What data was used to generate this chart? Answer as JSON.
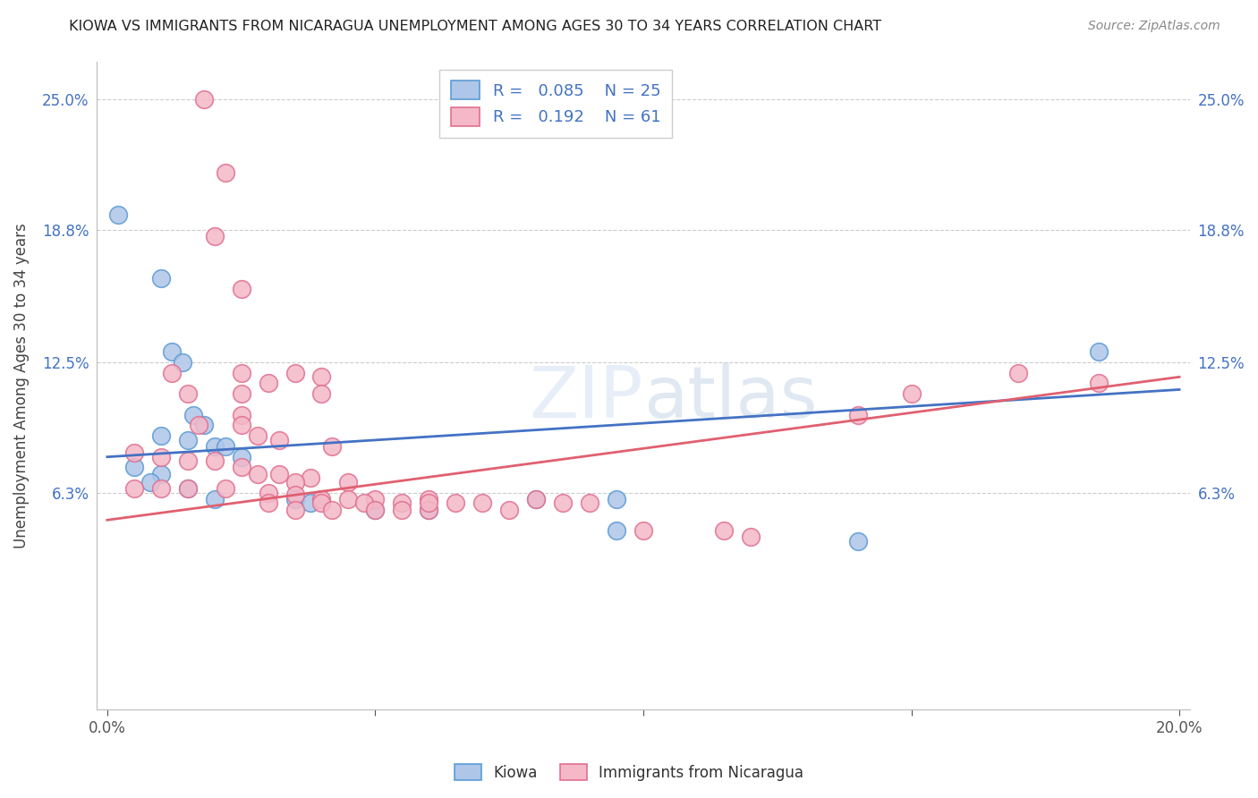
{
  "title": "KIOWA VS IMMIGRANTS FROM NICARAGUA UNEMPLOYMENT AMONG AGES 30 TO 34 YEARS CORRELATION CHART",
  "source": "Source: ZipAtlas.com",
  "ylabel": "Unemployment Among Ages 30 to 34 years",
  "xlim": [
    -0.002,
    0.202
  ],
  "ylim": [
    -0.04,
    0.268
  ],
  "xticks": [
    0.0,
    0.05,
    0.1,
    0.15,
    0.2
  ],
  "xtick_labels": [
    "0.0%",
    "",
    "",
    "",
    "20.0%"
  ],
  "ytick_positions": [
    0.063,
    0.125,
    0.188,
    0.25
  ],
  "ytick_labels": [
    "6.3%",
    "12.5%",
    "18.8%",
    "25.0%"
  ],
  "watermark_text": "ZIPatlas",
  "kiowa_color": "#aec6e8",
  "nicaragua_color": "#f4b8c8",
  "kiowa_edge_color": "#5b9bd5",
  "nicaragua_edge_color": "#e07090",
  "kiowa_line_color": "#4472c4",
  "nicaragua_line_color": "#e06070",
  "kiowa_points": [
    [
      0.002,
      0.195
    ],
    [
      0.01,
      0.165
    ],
    [
      0.012,
      0.13
    ],
    [
      0.014,
      0.125
    ],
    [
      0.016,
      0.1
    ],
    [
      0.018,
      0.095
    ],
    [
      0.01,
      0.09
    ],
    [
      0.015,
      0.088
    ],
    [
      0.02,
      0.085
    ],
    [
      0.022,
      0.085
    ],
    [
      0.025,
      0.08
    ],
    [
      0.005,
      0.075
    ],
    [
      0.01,
      0.072
    ],
    [
      0.008,
      0.068
    ],
    [
      0.015,
      0.065
    ],
    [
      0.02,
      0.06
    ],
    [
      0.035,
      0.06
    ],
    [
      0.038,
      0.058
    ],
    [
      0.05,
      0.055
    ],
    [
      0.06,
      0.055
    ],
    [
      0.08,
      0.06
    ],
    [
      0.095,
      0.06
    ],
    [
      0.095,
      0.045
    ],
    [
      0.14,
      0.04
    ],
    [
      0.185,
      0.13
    ]
  ],
  "nicaragua_points": [
    [
      0.018,
      0.25
    ],
    [
      0.022,
      0.215
    ],
    [
      0.02,
      0.185
    ],
    [
      0.025,
      0.16
    ],
    [
      0.025,
      0.12
    ],
    [
      0.03,
      0.115
    ],
    [
      0.035,
      0.12
    ],
    [
      0.04,
      0.118
    ],
    [
      0.012,
      0.12
    ],
    [
      0.015,
      0.11
    ],
    [
      0.025,
      0.11
    ],
    [
      0.04,
      0.11
    ],
    [
      0.025,
      0.1
    ],
    [
      0.025,
      0.095
    ],
    [
      0.017,
      0.095
    ],
    [
      0.028,
      0.09
    ],
    [
      0.032,
      0.088
    ],
    [
      0.042,
      0.085
    ],
    [
      0.005,
      0.082
    ],
    [
      0.01,
      0.08
    ],
    [
      0.015,
      0.078
    ],
    [
      0.02,
      0.078
    ],
    [
      0.025,
      0.075
    ],
    [
      0.028,
      0.072
    ],
    [
      0.032,
      0.072
    ],
    [
      0.038,
      0.07
    ],
    [
      0.045,
      0.068
    ],
    [
      0.035,
      0.068
    ],
    [
      0.005,
      0.065
    ],
    [
      0.01,
      0.065
    ],
    [
      0.015,
      0.065
    ],
    [
      0.022,
      0.065
    ],
    [
      0.03,
      0.063
    ],
    [
      0.035,
      0.062
    ],
    [
      0.04,
      0.06
    ],
    [
      0.045,
      0.06
    ],
    [
      0.05,
      0.06
    ],
    [
      0.055,
      0.058
    ],
    [
      0.06,
      0.06
    ],
    [
      0.065,
      0.058
    ],
    [
      0.06,
      0.055
    ],
    [
      0.07,
      0.058
    ],
    [
      0.075,
      0.055
    ],
    [
      0.03,
      0.058
    ],
    [
      0.04,
      0.058
    ],
    [
      0.048,
      0.058
    ],
    [
      0.035,
      0.055
    ],
    [
      0.042,
      0.055
    ],
    [
      0.05,
      0.055
    ],
    [
      0.055,
      0.055
    ],
    [
      0.06,
      0.058
    ],
    [
      0.08,
      0.06
    ],
    [
      0.085,
      0.058
    ],
    [
      0.09,
      0.058
    ],
    [
      0.1,
      0.045
    ],
    [
      0.115,
      0.045
    ],
    [
      0.12,
      0.042
    ],
    [
      0.14,
      0.1
    ],
    [
      0.15,
      0.11
    ],
    [
      0.17,
      0.12
    ],
    [
      0.185,
      0.115
    ]
  ]
}
